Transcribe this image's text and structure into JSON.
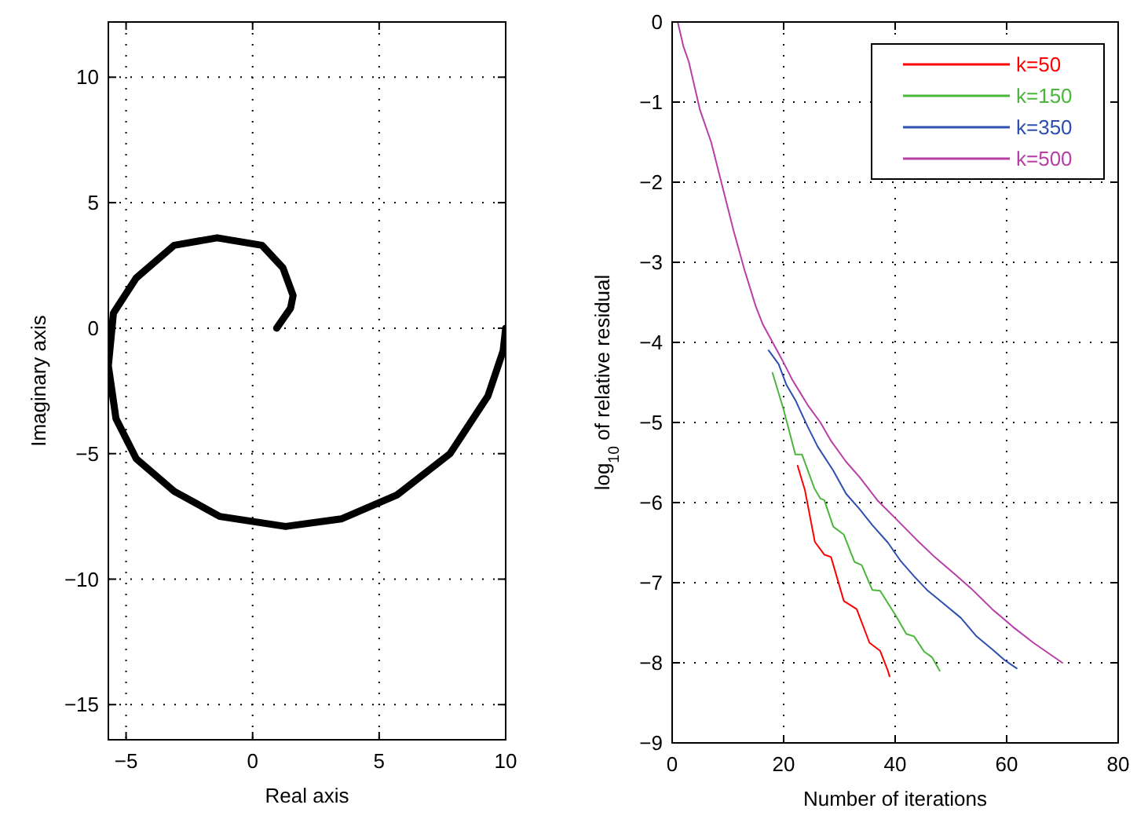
{
  "chart_data": [
    {
      "type": "line",
      "xlabel": "Real axis",
      "ylabel": "Imaginary axis",
      "xlim": [
        -5.7,
        10
      ],
      "ylim": [
        -16.4,
        12.2
      ],
      "xticks": [
        -5,
        0,
        5,
        10
      ],
      "yticks": [
        -15,
        -10,
        -5,
        0,
        5,
        10
      ],
      "grid": true,
      "legend": false,
      "series": [
        {
          "color": "#000000",
          "x": [
            0.95,
            1.5,
            1.6,
            1.2,
            0.37,
            -1.4,
            -3.1,
            -4.6,
            -5.5,
            -5.7,
            -5.4,
            -4.6,
            -3.1,
            -1.3,
            1.3,
            3.5,
            5.7,
            7.8,
            9.3,
            9.9,
            10
          ],
          "values": [
            0,
            0.8,
            1.3,
            2.4,
            3.3,
            3.6,
            3.3,
            2.0,
            0.6,
            -1.5,
            -3.6,
            -5.2,
            -6.5,
            -7.5,
            -7.9,
            -7.6,
            -6.65,
            -5.0,
            -2.7,
            -0.9,
            0
          ]
        }
      ]
    },
    {
      "type": "line",
      "xlabel": "Number of iterations",
      "ylabel": "log$_{10}$ of relative residual",
      "xlim": [
        0,
        80
      ],
      "ylim": [
        -9,
        0
      ],
      "xticks": [
        0,
        20,
        40,
        60,
        80
      ],
      "yticks": [
        -9,
        -8,
        -7,
        -6,
        -5,
        -4,
        -3,
        -2,
        -1,
        0
      ],
      "grid": true,
      "legend": "top right",
      "series": [
        {
          "name": "k=50",
          "color": "#ff0000",
          "x": [
            22.5,
            23.8,
            25.6,
            27.3,
            28.5,
            30.8,
            33.1,
            35.4,
            37.3,
            38.7,
            39
          ],
          "values": [
            -5.54,
            -5.84,
            -6.49,
            -6.65,
            -6.68,
            -7.23,
            -7.33,
            -7.75,
            -7.85,
            -8.1,
            -8.17
          ]
        },
        {
          "name": "k=150",
          "color": "#4cb63c",
          "x": [
            18,
            20,
            22.1,
            23.3,
            25.5,
            26.6,
            27.3,
            28.9,
            30.8,
            32.7,
            34,
            35.9,
            37.3,
            40.1,
            42,
            43.4,
            45.2,
            46.6,
            48
          ],
          "values": [
            -4.38,
            -4.84,
            -5.4,
            -5.4,
            -5.82,
            -5.95,
            -5.97,
            -6.3,
            -6.4,
            -6.74,
            -6.78,
            -7.09,
            -7.1,
            -7.41,
            -7.64,
            -7.67,
            -7.86,
            -7.93,
            -8.1
          ]
        },
        {
          "name": "k=350",
          "color": "#2f4fb0",
          "x": [
            17.3,
            19.1,
            20.5,
            22.1,
            24.3,
            26.1,
            28.9,
            31.2,
            33.6,
            35.9,
            38.7,
            41,
            43.4,
            45.7,
            48.5,
            51.8,
            54.6,
            57.4,
            59.7,
            61.8
          ],
          "values": [
            -4.1,
            -4.27,
            -4.53,
            -4.72,
            -5.05,
            -5.3,
            -5.6,
            -5.89,
            -6.08,
            -6.28,
            -6.5,
            -6.73,
            -6.92,
            -7.09,
            -7.25,
            -7.44,
            -7.67,
            -7.83,
            -7.97,
            -8.07
          ]
        },
        {
          "name": "k=500",
          "color": "#b83fa8",
          "x": [
            1,
            2,
            3,
            5,
            7,
            9,
            11,
            13,
            15,
            16.3,
            19.6,
            21.5,
            24.3,
            26.6,
            28.5,
            31.2,
            33.6,
            36.8,
            40.1,
            43.8,
            47.1,
            50.8,
            53.6,
            57.4,
            61.1,
            64.8,
            70
          ],
          "values": [
            0,
            -0.3,
            -0.5,
            -1.1,
            -1.5,
            -2.05,
            -2.6,
            -3.1,
            -3.55,
            -3.78,
            -4.2,
            -4.46,
            -4.78,
            -5.0,
            -5.23,
            -5.49,
            -5.68,
            -5.97,
            -6.2,
            -6.46,
            -6.68,
            -6.9,
            -7.07,
            -7.33,
            -7.55,
            -7.75,
            -8.0
          ]
        }
      ]
    }
  ]
}
